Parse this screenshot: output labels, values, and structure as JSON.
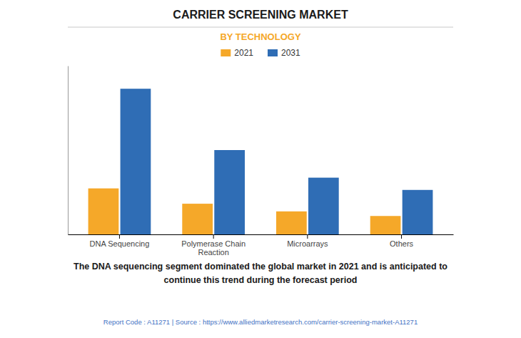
{
  "chart_data": {
    "type": "bar",
    "title": "CARRIER SCREENING MARKET",
    "subtitle": "BY TECHNOLOGY",
    "categories": [
      "DNA Sequencing",
      "Polymerase Chain\nReaction",
      "Microarrays",
      "Others"
    ],
    "series": [
      {
        "name": "2021",
        "color": "#F5A829",
        "values": [
          3.0,
          2.0,
          1.5,
          1.2
        ]
      },
      {
        "name": "2031",
        "color": "#2F6DB5",
        "values": [
          9.5,
          5.5,
          3.7,
          2.9
        ]
      }
    ],
    "ylim": [
      0,
      11
    ],
    "grid": false,
    "tick_labels": "x",
    "legend": "top",
    "annotations": [
      "The DNA sequencing segment dominated the global market in 2021 and is anticipated to\ncontinue this trend during the forecast period",
      "Report Code : A11271  |  Source : https://www.alliedmarketresearch.com/carrier-screening-market-A11271"
    ]
  }
}
